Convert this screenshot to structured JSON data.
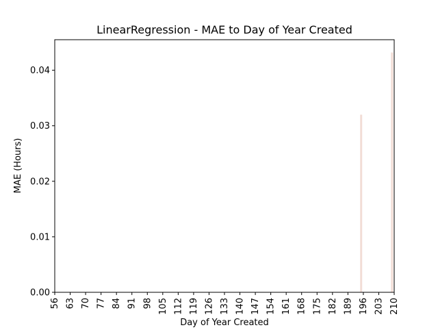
{
  "chart_data": {
    "type": "bar",
    "title": "LinearRegression - MAE to Day of Year Created",
    "xlabel": "Day of Year Created",
    "ylabel": "MAE (Hours)",
    "x_ticks": [
      "56",
      "63",
      "70",
      "77",
      "84",
      "91",
      "98",
      "105",
      "112",
      "119",
      "126",
      "133",
      "140",
      "147",
      "154",
      "161",
      "168",
      "175",
      "182",
      "189",
      "196",
      "203",
      "210"
    ],
    "y_ticks": [
      "0.00",
      "0.01",
      "0.02",
      "0.03",
      "0.04"
    ],
    "xlim": [
      56,
      210
    ],
    "ylim": [
      0,
      0.0455
    ],
    "bar_color": "#f2ddd6",
    "series": [
      {
        "x": [
          195,
          209
        ],
        "values": [
          0.032,
          0.0432
        ]
      }
    ]
  }
}
